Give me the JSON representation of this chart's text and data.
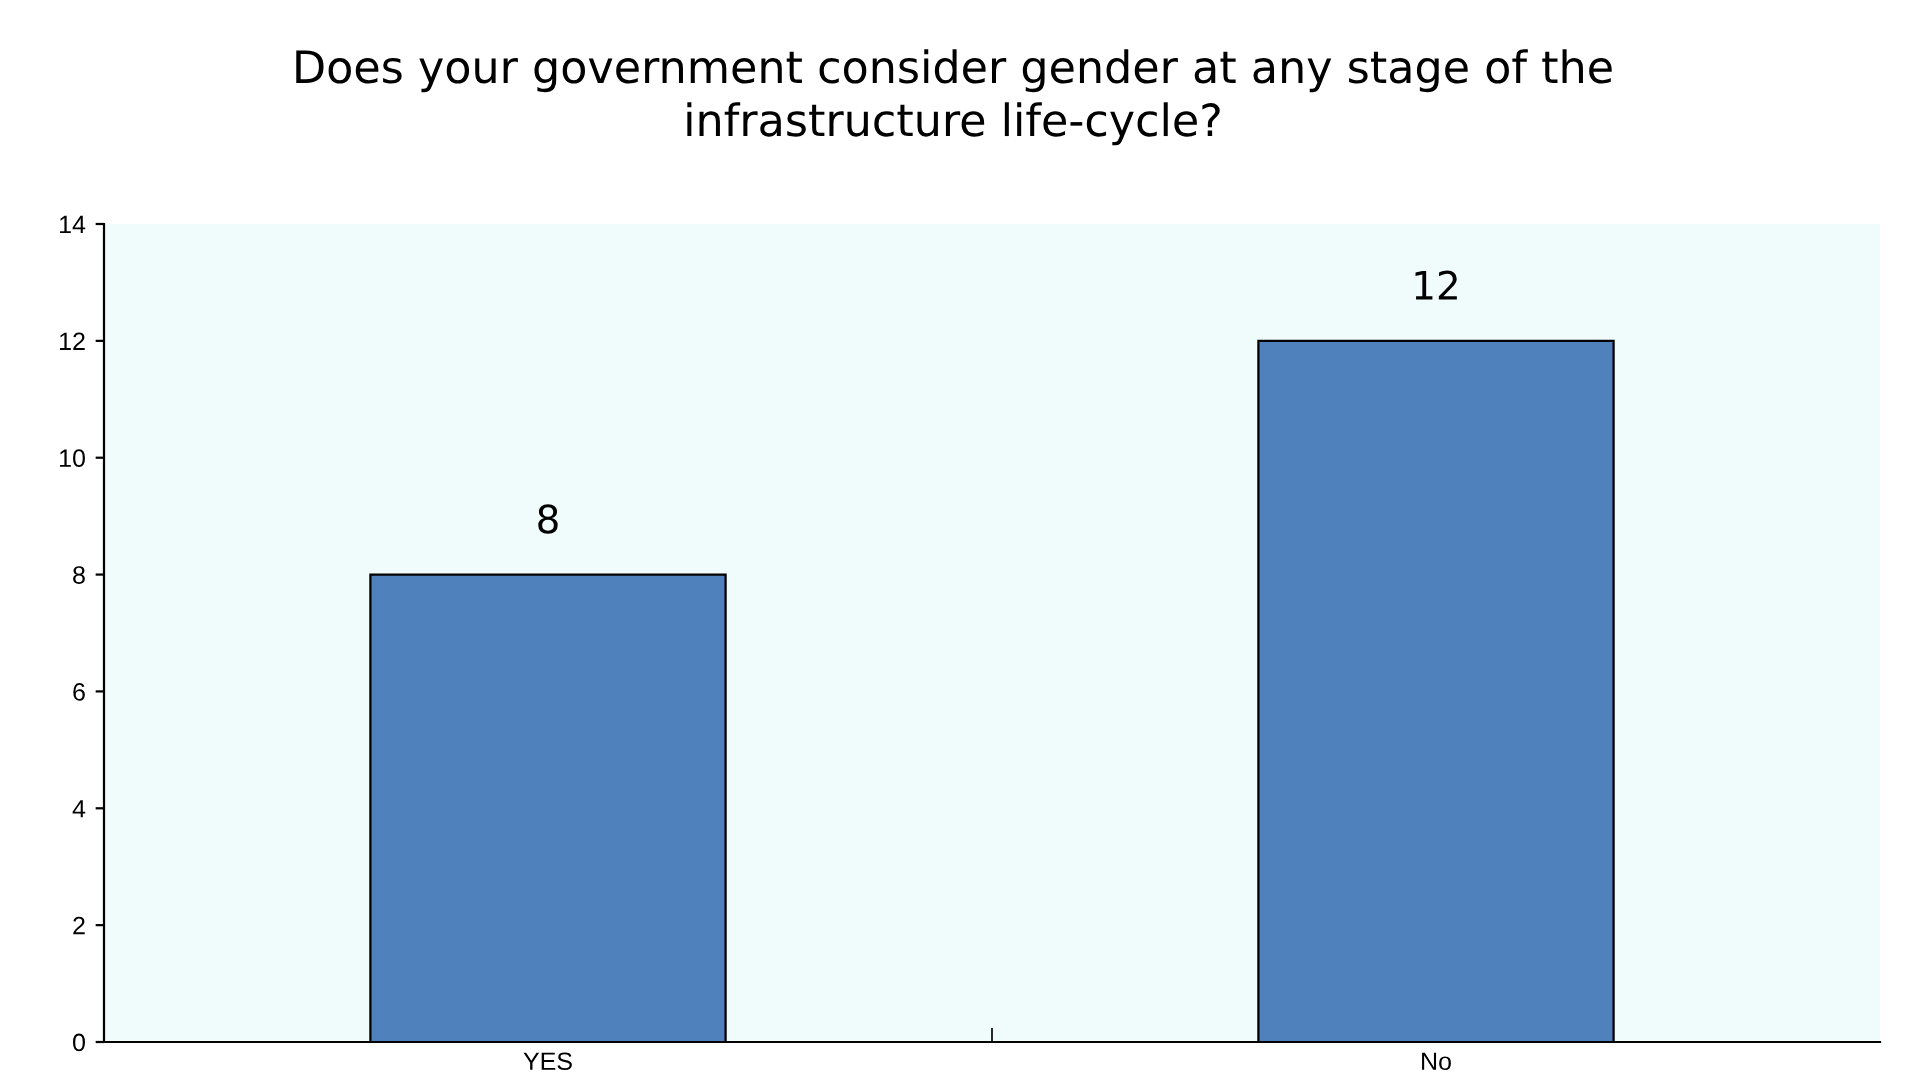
{
  "chart_data": {
    "type": "bar",
    "title": "Does your government consider gender at any stage of the\ninfrastructure life-cycle?",
    "categories": [
      "YES",
      "No"
    ],
    "values": [
      8,
      12
    ],
    "color": "#4f81bd",
    "ylim": [
      0,
      14
    ],
    "yticks": [
      0,
      2,
      4,
      6,
      8,
      10,
      12,
      14
    ],
    "grid": false,
    "data_labels": true
  }
}
